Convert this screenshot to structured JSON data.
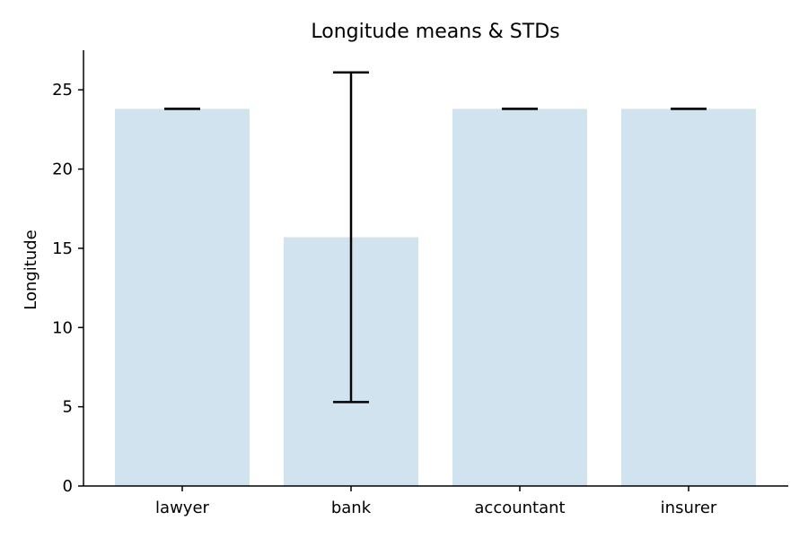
{
  "chart_data": {
    "type": "bar",
    "title": "Longitude means & STDs",
    "xlabel": "",
    "ylabel": "Longitude",
    "categories": [
      "lawyer",
      "bank",
      "accountant",
      "insurer"
    ],
    "values": [
      23.8,
      15.7,
      23.8,
      23.8
    ],
    "errors": [
      0.0,
      10.4,
      0.0,
      0.0
    ],
    "ylim": [
      0,
      27.5
    ],
    "yticks": [
      0,
      5,
      10,
      15,
      20,
      25
    ],
    "bar_color": "#d1e3ef",
    "error_color": "#000000",
    "grid": false,
    "legend": "none"
  }
}
